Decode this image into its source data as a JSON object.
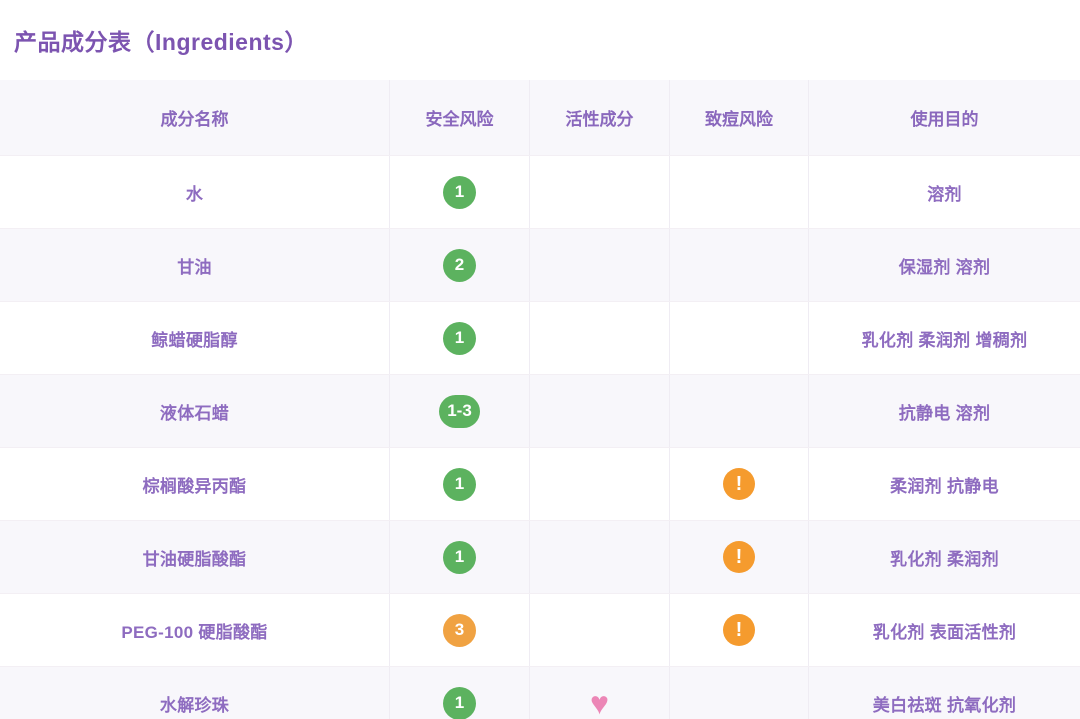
{
  "title": "产品成分表（Ingredients）",
  "colors": {
    "title_purple": "#7c54b0",
    "text_purple": "#8e6cc0",
    "badge_green": "#5cb25f",
    "badge_orange": "#f0a242",
    "alert_orange": "#f59b2e",
    "heart_pink": "#ec86b6",
    "header_bg": "#f8f7fb"
  },
  "icons": {
    "heart_glyph": "♥",
    "alert_glyph": "!"
  },
  "table": {
    "headers": {
      "name": "成分名称",
      "safety": "安全风险",
      "active": "活性成分",
      "acne": "致痘风险",
      "purpose": "使用目的"
    },
    "rows": [
      {
        "name": "水",
        "safety": "1",
        "safety_variant": "green",
        "active": false,
        "acne": false,
        "purpose": "溶剂"
      },
      {
        "name": "甘油",
        "safety": "2",
        "safety_variant": "green",
        "active": false,
        "acne": false,
        "purpose": "保湿剂 溶剂"
      },
      {
        "name": "鲸蜡硬脂醇",
        "safety": "1",
        "safety_variant": "green",
        "active": false,
        "acne": false,
        "purpose": "乳化剂 柔润剂 增稠剂"
      },
      {
        "name": "液体石蜡",
        "safety": "1-3",
        "safety_variant": "green",
        "active": false,
        "acne": false,
        "purpose": "抗静电 溶剂"
      },
      {
        "name": "棕榈酸异丙酯",
        "safety": "1",
        "safety_variant": "green",
        "active": false,
        "acne": true,
        "purpose": "柔润剂 抗静电"
      },
      {
        "name": "甘油硬脂酸酯",
        "safety": "1",
        "safety_variant": "green",
        "active": false,
        "acne": true,
        "purpose": "乳化剂 柔润剂"
      },
      {
        "name": "PEG-100 硬脂酸酯",
        "safety": "3",
        "safety_variant": "orange",
        "active": false,
        "acne": true,
        "purpose": "乳化剂 表面活性剂"
      },
      {
        "name": "水解珍珠",
        "safety": "1",
        "safety_variant": "green",
        "active": true,
        "acne": false,
        "purpose": "美白祛斑 抗氧化剂"
      }
    ]
  }
}
